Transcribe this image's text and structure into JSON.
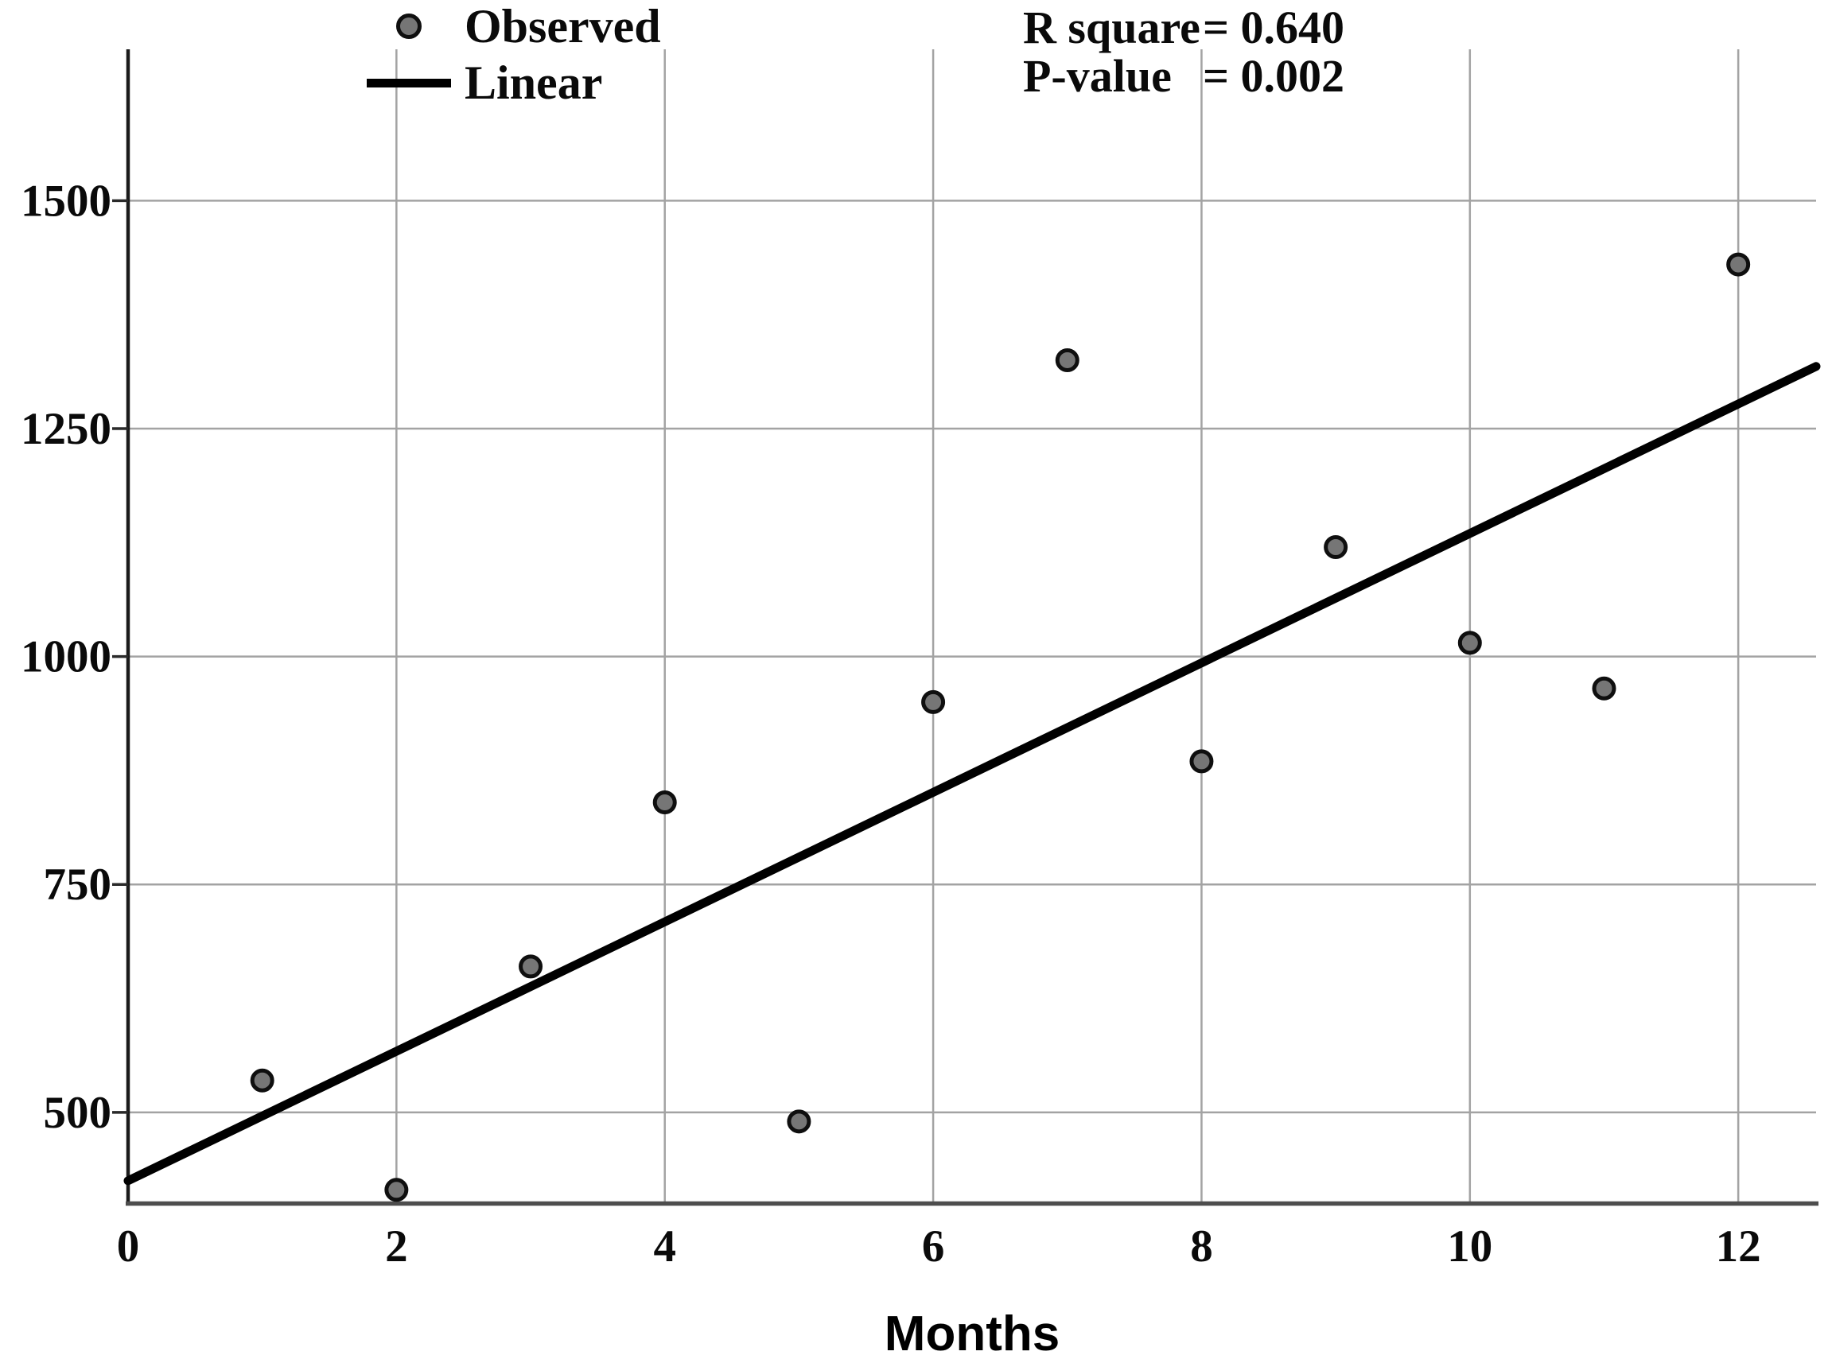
{
  "chart_data": {
    "type": "scatter",
    "title": "",
    "xlabel": "Months",
    "ylabel": "",
    "x": [
      1,
      2,
      3,
      4,
      5,
      6,
      7,
      8,
      9,
      10,
      11,
      12
    ],
    "series": [
      {
        "name": "Observed",
        "type": "scatter",
        "values": [
          535,
          415,
          660,
          840,
          490,
          950,
          1325,
          885,
          1120,
          1015,
          965,
          1430
        ]
      }
    ],
    "trendline": {
      "name": "Linear",
      "intercept": 425,
      "slope": 71,
      "x_start": 0,
      "x_end": 12.58
    },
    "xlim": [
      0,
      12.58
    ],
    "ylim": [
      400,
      1666
    ],
    "xticks": [
      "0",
      "2",
      "4",
      "6",
      "8",
      "10",
      "12"
    ],
    "yticks": [
      "500",
      "750",
      "1000",
      "1250",
      "1500"
    ],
    "grid": true,
    "legend_position": "top-left",
    "legend": [
      {
        "label": "Observed",
        "marker": "dot"
      },
      {
        "label": "Linear",
        "marker": "line"
      }
    ],
    "stats": [
      {
        "label": "R square",
        "value": "= 0.640"
      },
      {
        "label": "P-value",
        "value": "= 0.002"
      }
    ],
    "colors": {
      "background": "#ffffff",
      "grid": "#a3a3a3",
      "axis_y": "#1a1a1a",
      "axis_x": "#4d4d4d",
      "tick": "#2a2a2a",
      "trend_line": "#000000",
      "point_fill": "#767676",
      "point_stroke": "#0f0f0f",
      "text": "#0a0a0a"
    }
  }
}
